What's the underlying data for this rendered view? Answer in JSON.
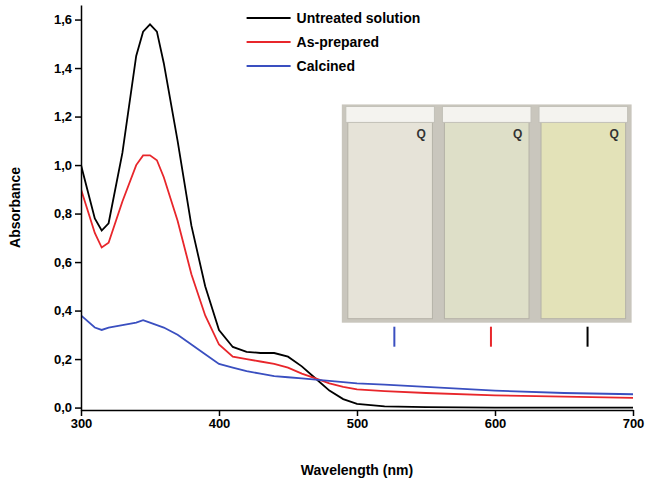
{
  "chart_data": {
    "type": "line",
    "x_label": "Wavelength (nm)",
    "y_label": "Absorbance",
    "x": [
      300,
      310,
      315,
      320,
      330,
      340,
      345,
      350,
      355,
      360,
      370,
      380,
      390,
      400,
      410,
      420,
      430,
      440,
      450,
      460,
      470,
      480,
      490,
      500,
      520,
      550,
      600,
      650,
      700
    ],
    "series": [
      {
        "name": "Untreated solution",
        "color": "#000000",
        "values": [
          1.0,
          0.78,
          0.73,
          0.76,
          1.05,
          1.45,
          1.55,
          1.58,
          1.55,
          1.42,
          1.1,
          0.75,
          0.5,
          0.32,
          0.25,
          0.23,
          0.225,
          0.225,
          0.21,
          0.17,
          0.12,
          0.07,
          0.035,
          0.015,
          0.005,
          0.002,
          0,
          0,
          0
        ]
      },
      {
        "name": "As-prepared",
        "color": "#e8262b",
        "values": [
          0.9,
          0.72,
          0.66,
          0.68,
          0.85,
          1.0,
          1.04,
          1.04,
          1.02,
          0.95,
          0.77,
          0.55,
          0.38,
          0.26,
          0.21,
          0.2,
          0.19,
          0.18,
          0.165,
          0.14,
          0.12,
          0.1,
          0.085,
          0.075,
          0.068,
          0.06,
          0.05,
          0.045,
          0.04
        ]
      },
      {
        "name": "Calcined",
        "color": "#3a4fc0",
        "values": [
          0.38,
          0.33,
          0.32,
          0.33,
          0.34,
          0.35,
          0.36,
          0.35,
          0.34,
          0.33,
          0.3,
          0.26,
          0.22,
          0.18,
          0.165,
          0.15,
          0.14,
          0.13,
          0.125,
          0.12,
          0.115,
          0.11,
          0.105,
          0.1,
          0.095,
          0.085,
          0.07,
          0.06,
          0.055
        ]
      }
    ],
    "xlim": [
      300,
      700
    ],
    "xticks": [
      300,
      400,
      500,
      600,
      700
    ],
    "ylim": [
      -0.01,
      1.66
    ],
    "yticks": [
      {
        "value": 0,
        "label": "0,0"
      },
      {
        "value": 0.2,
        "label": "0,2"
      },
      {
        "value": 0.4,
        "label": "0,4"
      },
      {
        "value": 0.6,
        "label": "0,6"
      },
      {
        "value": 0.8,
        "label": "0,8"
      },
      {
        "value": 1.0,
        "label": "1,0"
      },
      {
        "value": 1.2,
        "label": "1,2"
      },
      {
        "value": 1.4,
        "label": "1,4"
      },
      {
        "value": 1.6,
        "label": "1,6"
      }
    ],
    "annotations": [
      "Q",
      "Q",
      "Q"
    ],
    "legend": "top",
    "grid": false
  }
}
